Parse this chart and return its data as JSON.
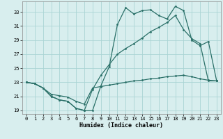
{
  "xlabel": "Humidex (Indice chaleur)",
  "bg_color": "#d8eeee",
  "grid_color": "#aad4d4",
  "line_color": "#2a7068",
  "xlim": [
    -0.5,
    23.5
  ],
  "ylim": [
    18.5,
    34.5
  ],
  "xticks": [
    0,
    1,
    2,
    3,
    4,
    5,
    6,
    7,
    8,
    9,
    10,
    11,
    12,
    13,
    14,
    15,
    16,
    17,
    18,
    19,
    20,
    21,
    22,
    23
  ],
  "yticks": [
    19,
    21,
    23,
    25,
    27,
    29,
    31,
    33
  ],
  "line1_x": [
    0,
    1,
    2,
    3,
    4,
    5,
    6,
    7,
    8,
    9,
    10,
    11,
    12,
    13,
    14,
    15,
    16,
    17,
    18,
    19,
    20,
    21,
    22,
    23
  ],
  "line1_y": [
    23.0,
    22.8,
    22.2,
    21.0,
    20.5,
    20.3,
    19.3,
    19.0,
    19.0,
    22.5,
    25.2,
    31.2,
    33.6,
    32.7,
    33.2,
    33.3,
    32.5,
    32.0,
    33.8,
    33.2,
    29.0,
    28.2,
    28.8,
    23.2
  ],
  "line2_x": [
    0,
    1,
    2,
    3,
    4,
    5,
    6,
    7,
    8,
    9,
    10,
    11,
    12,
    13,
    14,
    15,
    16,
    17,
    18,
    19,
    20,
    21,
    22,
    23
  ],
  "line2_y": [
    23.0,
    22.8,
    22.2,
    21.0,
    20.5,
    20.3,
    19.3,
    19.0,
    22.0,
    24.0,
    25.5,
    27.0,
    27.8,
    28.5,
    29.3,
    30.2,
    30.8,
    31.5,
    32.5,
    30.5,
    29.2,
    28.5,
    23.2,
    23.2
  ],
  "line3_x": [
    0,
    1,
    2,
    3,
    4,
    5,
    6,
    7,
    8,
    9,
    10,
    11,
    12,
    13,
    14,
    15,
    16,
    17,
    18,
    19,
    20,
    21,
    22,
    23
  ],
  "line3_y": [
    23.0,
    22.8,
    22.2,
    21.3,
    21.1,
    20.9,
    20.3,
    19.9,
    22.2,
    22.4,
    22.6,
    22.8,
    23.0,
    23.2,
    23.3,
    23.5,
    23.6,
    23.8,
    23.9,
    24.0,
    23.8,
    23.5,
    23.3,
    23.2
  ]
}
